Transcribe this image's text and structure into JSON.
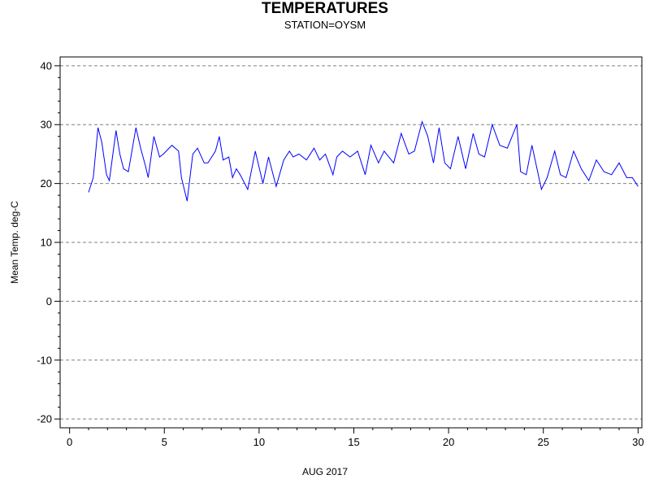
{
  "chart_data": {
    "type": "line",
    "title": "TEMPERATURES",
    "subtitle": "STATION=OYSM",
    "xlabel": "AUG 2017",
    "ylabel": "Mean Temp. deg-C",
    "xlim": [
      -0.5,
      30.2
    ],
    "ylim": [
      -21.5,
      41.5
    ],
    "xticks": [
      0,
      5,
      10,
      15,
      20,
      25,
      30
    ],
    "yticks": [
      -20,
      -10,
      0,
      10,
      20,
      30,
      40
    ],
    "grid": "horizontal dashed",
    "series_color": "#0000ff",
    "series": [
      {
        "x": [
          1.0,
          1.25,
          1.5,
          1.7,
          1.95,
          2.1,
          2.45,
          2.65,
          2.85,
          3.1,
          3.5,
          3.75,
          4.0,
          4.15,
          4.45,
          4.75,
          4.95,
          5.4,
          5.75,
          5.9,
          6.2,
          6.5,
          6.75,
          7.1,
          7.3,
          7.7,
          7.9,
          8.1,
          8.4,
          8.6,
          8.8,
          9.0,
          9.4,
          9.8,
          10.2,
          10.5,
          10.9,
          11.3,
          11.6,
          11.8,
          12.1,
          12.5,
          12.9,
          13.2,
          13.5,
          13.9,
          14.1,
          14.4,
          14.8,
          15.2,
          15.6,
          15.9,
          16.3,
          16.6,
          17.1,
          17.5,
          17.9,
          18.2,
          18.6,
          18.9,
          19.2,
          19.5,
          19.8,
          20.1,
          20.5,
          20.9,
          21.3,
          21.6,
          21.9,
          22.3,
          22.7,
          23.1,
          23.6,
          23.8,
          24.1,
          24.4,
          24.9,
          25.2,
          25.6,
          25.9,
          26.2,
          26.6,
          27.0,
          27.4,
          27.8,
          28.2,
          28.6,
          29.0,
          29.4,
          29.7,
          30.0
        ],
        "y": [
          18.5,
          21.0,
          29.5,
          27.0,
          21.5,
          20.5,
          29.0,
          25.0,
          22.5,
          22.0,
          29.5,
          26.0,
          23.0,
          21.0,
          28.0,
          24.5,
          25.0,
          26.5,
          25.5,
          21.0,
          17.0,
          25.0,
          26.0,
          23.5,
          23.5,
          25.5,
          28.0,
          24.0,
          24.5,
          21.0,
          22.5,
          21.5,
          19.0,
          25.5,
          20.0,
          24.5,
          19.5,
          24.0,
          25.5,
          24.5,
          25.0,
          24.0,
          26.0,
          24.0,
          25.0,
          21.5,
          24.5,
          25.5,
          24.5,
          25.5,
          21.5,
          26.5,
          23.5,
          25.5,
          23.5,
          28.5,
          25.0,
          25.5,
          30.5,
          28.0,
          23.5,
          29.5,
          23.5,
          22.5,
          28.0,
          22.5,
          28.5,
          25.0,
          24.5,
          30.0,
          26.5,
          26.0,
          30.0,
          22.0,
          21.5,
          26.5,
          19.0,
          21.0,
          25.5,
          21.5,
          21.0,
          25.5,
          22.5,
          20.5,
          24.0,
          22.0,
          21.5,
          23.5,
          21.0,
          21.0,
          19.5
        ]
      }
    ]
  }
}
